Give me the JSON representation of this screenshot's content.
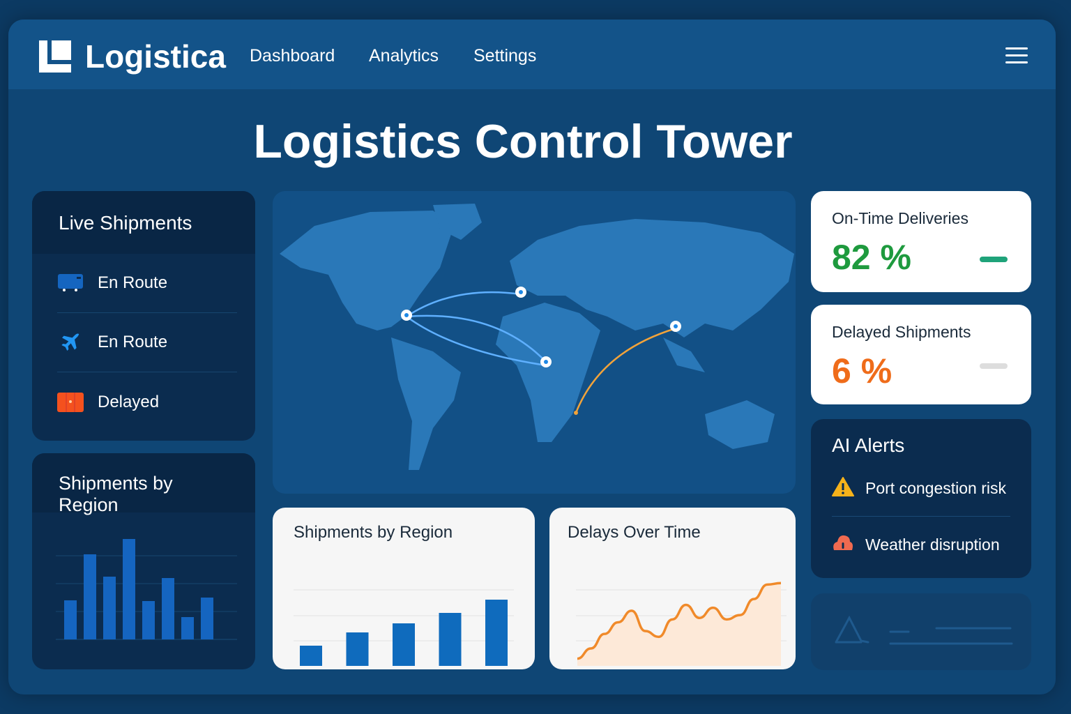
{
  "nav": {
    "brand": "Logistica",
    "links": [
      "Dashboard",
      "Analytics",
      "Settings"
    ]
  },
  "page_title": "Logistics Control Tower",
  "live_shipments": {
    "title": "Live Shipments",
    "items": [
      {
        "icon": "truck-icon",
        "label": "En Route",
        "color": "#1565c0"
      },
      {
        "icon": "airplane-icon",
        "label": "En Route",
        "color": "#2196f3"
      },
      {
        "icon": "container-icon",
        "label": "Delayed",
        "color": "#f4511e"
      }
    ]
  },
  "kpis": [
    {
      "label": "On-Time Deliveries",
      "value": "82 %",
      "color": "#1e9a3e",
      "indicator": "#1fa37a"
    },
    {
      "label": "Delayed Shipments",
      "value": "6 %",
      "color": "#ef6c1a",
      "indicator": "#dddddd"
    }
  ],
  "ai_alerts": {
    "title": "AI Alerts",
    "items": [
      {
        "icon": "warning-icon",
        "label": "Port congestion risk",
        "color": "#f6b21b"
      },
      {
        "icon": "weather-alert-icon",
        "label": "Weather disruption",
        "color": "#f06a50"
      }
    ]
  },
  "chart_data": [
    {
      "type": "bar",
      "title": "Shipments by Region",
      "values": [
        56,
        122,
        90,
        144,
        55,
        88,
        32,
        60
      ],
      "color": "#1565c0"
    },
    {
      "type": "bar",
      "title": "Shipments by Region",
      "values": [
        29,
        48,
        61,
        76,
        95
      ],
      "color": "#0f6bbd"
    },
    {
      "type": "area",
      "title": "Delays Over Time",
      "values": [
        5,
        12,
        22,
        30,
        38,
        24,
        20,
        32,
        42,
        33,
        40,
        32,
        35,
        46,
        56,
        57
      ],
      "color": "#f08a2a"
    }
  ]
}
